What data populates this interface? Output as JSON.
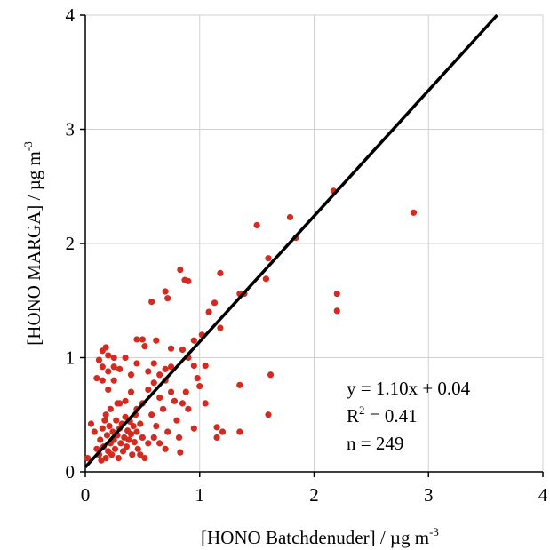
{
  "chart_data": {
    "type": "scatter",
    "x_label": "[HONO Batchdenuder] / µg m",
    "x_label_sup": "-3",
    "y_label": "[HONO MARGA] / µg m",
    "y_label_sup": "-3",
    "annotations": [
      {
        "text": "y = 1.10x + 0.04"
      },
      {
        "text": "R",
        "sup": "2",
        "rest": " = 0.41"
      },
      {
        "text": "n = 249"
      }
    ],
    "fit_line": {
      "slope": 1.1,
      "intercept": 0.04,
      "x": [
        0,
        3.6
      ]
    },
    "color": "#d42a20",
    "xlim": [
      0,
      4
    ],
    "ylim": [
      0,
      4
    ],
    "xticks": [
      0,
      1,
      2,
      3,
      4
    ],
    "yticks": [
      0,
      1,
      2,
      3,
      4
    ],
    "grid": true,
    "x": [
      0.02,
      0.05,
      0.08,
      0.1,
      0.12,
      0.13,
      0.14,
      0.15,
      0.16,
      0.17,
      0.18,
      0.19,
      0.2,
      0.21,
      0.22,
      0.23,
      0.24,
      0.25,
      0.26,
      0.27,
      0.28,
      0.29,
      0.3,
      0.31,
      0.32,
      0.33,
      0.34,
      0.35,
      0.36,
      0.37,
      0.38,
      0.39,
      0.4,
      0.41,
      0.42,
      0.43,
      0.44,
      0.45,
      0.46,
      0.48,
      0.5,
      0.52,
      0.55,
      0.18,
      0.22,
      0.28,
      0.35,
      0.4,
      0.45,
      0.5,
      0.55,
      0.58,
      0.6,
      0.62,
      0.65,
      0.68,
      0.7,
      0.72,
      0.75,
      0.78,
      0.8,
      0.82,
      0.83,
      0.85,
      0.88,
      0.9,
      0.95,
      1.0,
      0.98,
      0.6,
      0.48,
      0.65,
      0.7,
      0.3,
      0.4,
      0.45,
      0.55,
      0.6,
      0.65,
      0.7,
      0.75,
      2.87,
      2.2,
      2.2,
      2.17,
      1.79,
      1.5,
      1.84,
      1.6,
      1.18,
      0.83,
      0.87,
      0.9,
      0.7,
      0.72,
      0.58,
      1.58,
      1.39,
      1.35,
      1.62,
      1.6,
      1.35,
      1.35,
      1.2,
      1.15,
      1.15,
      1.05,
      1.08,
      1.13,
      1.18,
      1.02,
      0.95,
      0.45,
      0.5,
      0.52,
      0.62,
      0.75,
      0.85,
      0.9,
      0.95,
      1.05,
      0.18,
      0.15,
      0.2,
      0.25,
      0.12,
      0.15,
      0.25,
      0.2,
      0.1,
      0.15,
      0.2,
      0.25,
      0.3,
      0.35
    ],
    "values": [
      0.12,
      0.42,
      0.35,
      0.2,
      0.15,
      0.28,
      0.1,
      0.38,
      0.22,
      0.45,
      0.12,
      0.32,
      0.18,
      0.4,
      0.25,
      0.15,
      0.35,
      0.28,
      0.2,
      0.45,
      0.32,
      0.12,
      0.38,
      0.25,
      0.42,
      0.18,
      0.3,
      0.48,
      0.22,
      0.36,
      0.28,
      0.44,
      0.33,
      0.15,
      0.4,
      0.26,
      0.5,
      0.35,
      0.2,
      0.42,
      0.3,
      0.12,
      0.25,
      0.5,
      0.55,
      0.6,
      0.62,
      0.7,
      0.55,
      0.6,
      0.72,
      0.5,
      0.78,
      0.4,
      0.65,
      0.55,
      0.8,
      0.35,
      0.7,
      0.62,
      0.45,
      0.3,
      0.17,
      0.6,
      0.7,
      0.55,
      0.38,
      0.75,
      0.82,
      0.3,
      0.15,
      0.25,
      0.2,
      0.9,
      0.85,
      0.95,
      0.88,
      0.95,
      0.85,
      0.9,
      0.92,
      2.27,
      1.56,
      1.41,
      2.46,
      2.23,
      2.16,
      2.05,
      1.87,
      1.74,
      1.77,
      1.68,
      1.67,
      1.58,
      1.52,
      1.49,
      1.69,
      1.56,
      1.56,
      0.85,
      0.5,
      0.76,
      0.35,
      0.35,
      0.39,
      0.3,
      0.6,
      1.4,
      1.48,
      1.26,
      1.2,
      1.15,
      1.16,
      1.16,
      1.1,
      1.15,
      1.08,
      1.07,
      1.0,
      0.93,
      0.93,
      1.09,
      1.06,
      1.02,
      1.0,
      0.98,
      0.92,
      0.92,
      0.88,
      0.82,
      0.8,
      0.72,
      0.8,
      0.6,
      1.0
    ]
  }
}
